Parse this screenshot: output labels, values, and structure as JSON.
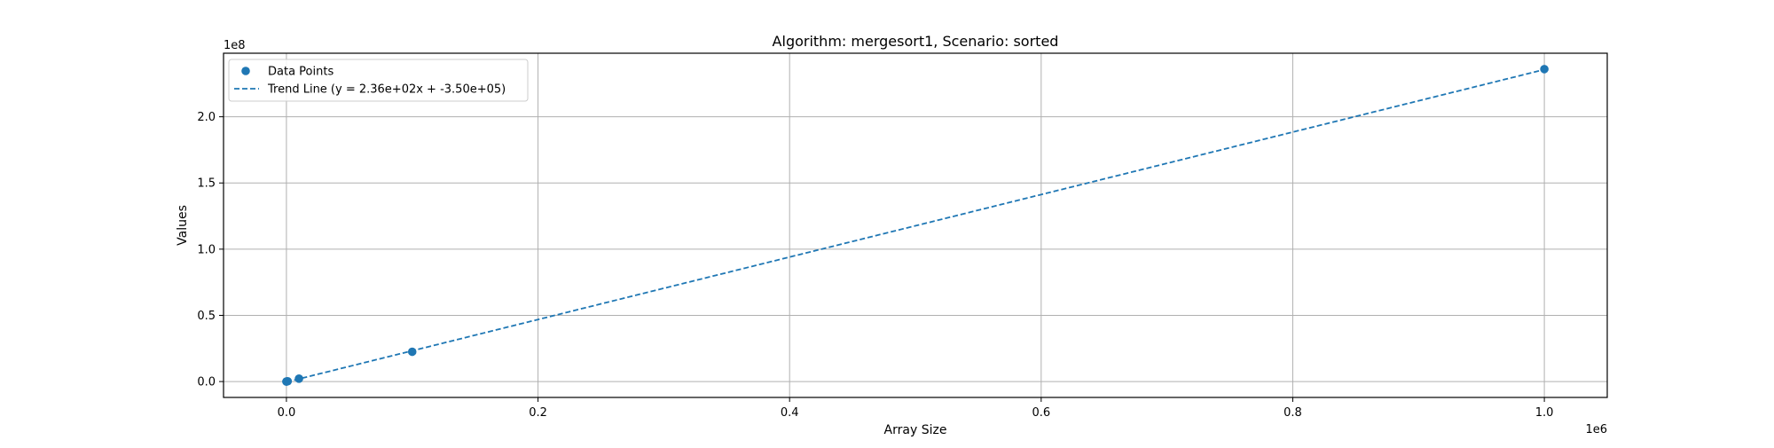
{
  "chart_data": {
    "type": "scatter",
    "title": "Algorithm: mergesort1, Scenario: sorted",
    "xlabel": "Array Size",
    "ylabel": "Values",
    "x_offset_label": "1e6",
    "y_offset_label": "1e8",
    "xlim": [
      -50000,
      1050000
    ],
    "ylim": [
      -12000000,
      248000000
    ],
    "x_ticks": [
      0,
      200000,
      400000,
      600000,
      800000,
      1000000
    ],
    "x_tick_labels": [
      "0.0",
      "0.2",
      "0.4",
      "0.6",
      "0.8",
      "1.0"
    ],
    "y_ticks": [
      0,
      50000000,
      100000000,
      150000000,
      200000000
    ],
    "y_tick_labels": [
      "0.0",
      "0.5",
      "1.0",
      "1.5",
      "2.0"
    ],
    "grid": true,
    "legend_position": "top-left",
    "series": [
      {
        "name": "Data Points",
        "kind": "scatter",
        "color": "#1f77b4",
        "x": [
          10,
          100,
          1000,
          10000,
          100000,
          1000000
        ],
        "y": [
          2000,
          20000,
          230000,
          2200000,
          22500000,
          236000000
        ]
      },
      {
        "name": "Trend Line (y = 2.36e+02x + -3.50e+05)",
        "kind": "line",
        "style": "dashed",
        "color": "#1f77b4",
        "slope": 236,
        "intercept": -350000,
        "x_range": [
          10,
          1000000
        ]
      }
    ]
  }
}
